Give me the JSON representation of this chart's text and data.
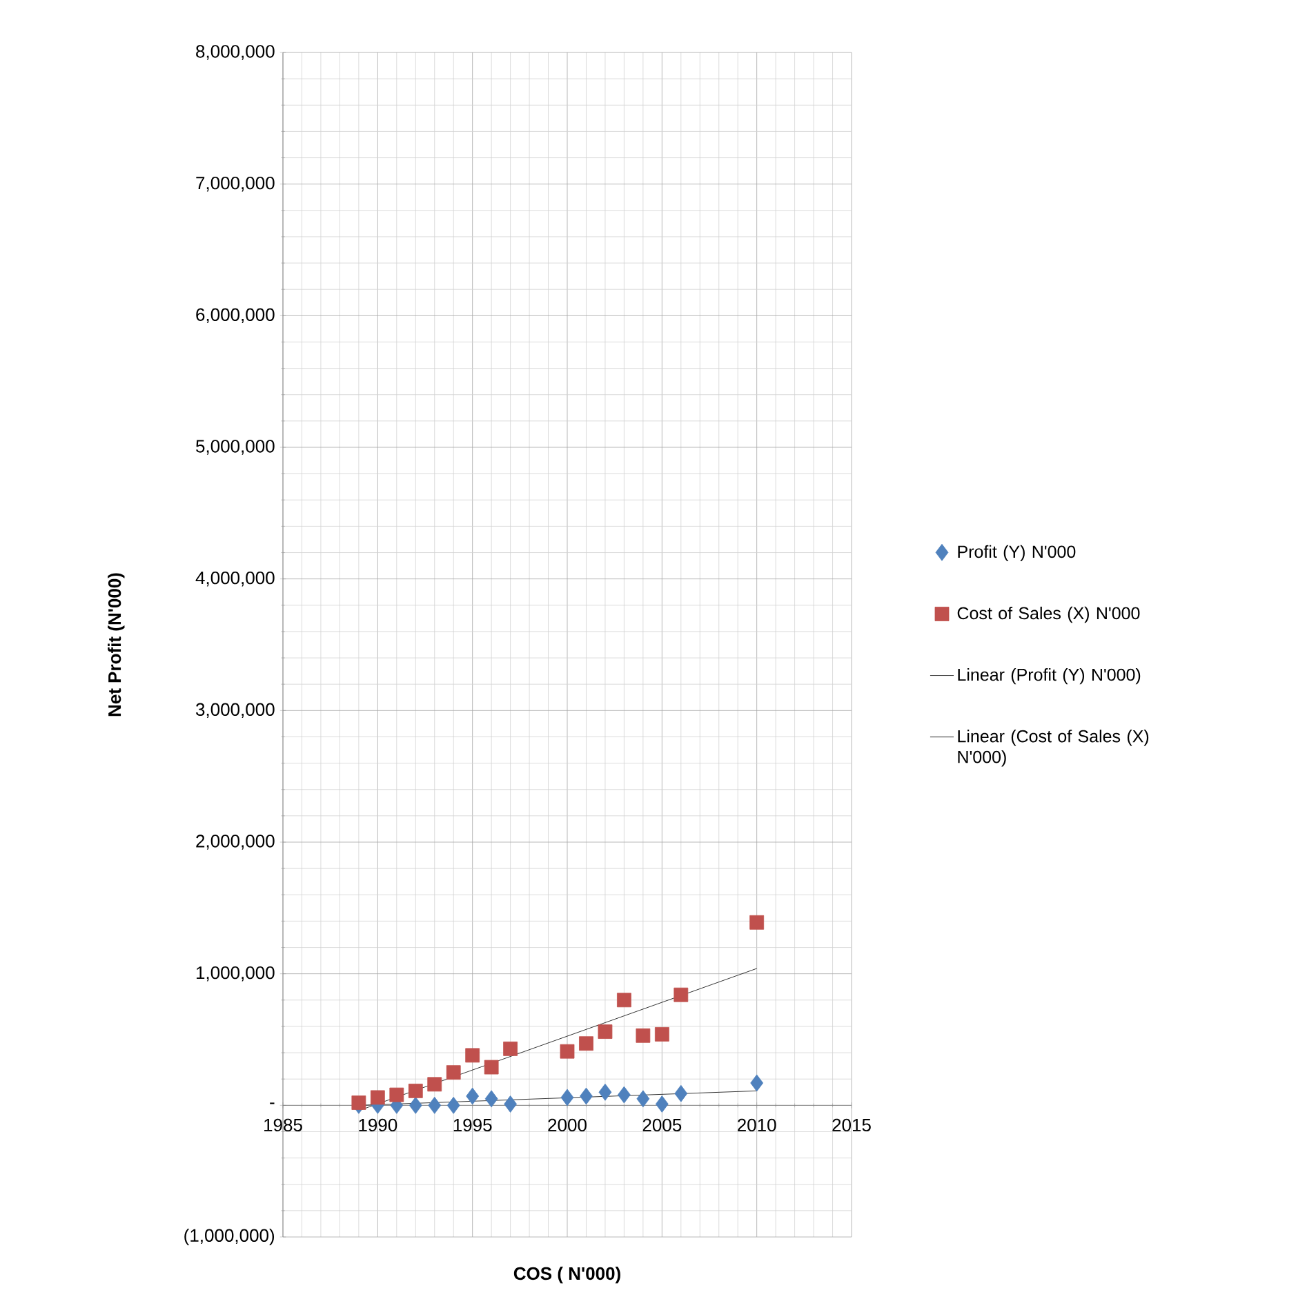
{
  "chart_data": {
    "type": "scatter",
    "xlabel": "COS ( N'000)",
    "ylabel": "Net Profit (N'000)",
    "xlim": [
      1985,
      2015
    ],
    "xticks": [
      1985,
      1990,
      1995,
      2000,
      2005,
      2010,
      2015
    ],
    "ylim": [
      -1000000,
      8000000
    ],
    "yticks": [
      {
        "value": -1000000,
        "label": "(1,000,000)"
      },
      {
        "value": 0,
        "label": "-"
      },
      {
        "value": 1000000,
        "label": "1,000,000"
      },
      {
        "value": 2000000,
        "label": "2,000,000"
      },
      {
        "value": 3000000,
        "label": "3,000,000"
      },
      {
        "value": 4000000,
        "label": "4,000,000"
      },
      {
        "value": 5000000,
        "label": "5,000,000"
      },
      {
        "value": 6000000,
        "label": "6,000,000"
      },
      {
        "value": 7000000,
        "label": "7,000,000"
      },
      {
        "value": 8000000,
        "label": "8,000,000"
      }
    ],
    "grid": true,
    "legend": "right",
    "series": [
      {
        "name": "Profit  (Y) N'000",
        "type": "scatter",
        "marker": "diamond",
        "color": "#4f81bd",
        "x": [
          1989,
          1990,
          1991,
          1992,
          1993,
          1994,
          1995,
          1996,
          1997,
          2000,
          2001,
          2002,
          2003,
          2004,
          2005,
          2006,
          2010
        ],
        "values": [
          0,
          0,
          0,
          0,
          0,
          0,
          70000,
          50000,
          10000,
          60000,
          70000,
          100000,
          80000,
          50000,
          10000,
          90000,
          170000
        ]
      },
      {
        "name": "Cost of Sales  (X) N'000",
        "type": "scatter",
        "marker": "square",
        "color": "#c0504d",
        "x": [
          1989,
          1990,
          1991,
          1992,
          1993,
          1994,
          1995,
          1996,
          1997,
          2000,
          2001,
          2002,
          2003,
          2004,
          2005,
          2006,
          2010
        ],
        "values": [
          20000,
          60000,
          80000,
          110000,
          160000,
          250000,
          380000,
          290000,
          430000,
          410000,
          470000,
          560000,
          800000,
          530000,
          540000,
          840000,
          1390000
        ]
      },
      {
        "name": "Linear (Profit  (Y) N'000)",
        "type": "line",
        "marker": "none",
        "line_style": "solid",
        "color": "#000000",
        "x": [
          1989,
          2010
        ],
        "values": [
          0,
          110000
        ]
      },
      {
        "name": "Linear (Cost of Sales  (X) N'000)",
        "type": "line",
        "marker": "none",
        "line_style": "solid",
        "color": "#000000",
        "x": [
          1989,
          2010
        ],
        "values": [
          -40000,
          1040000
        ]
      }
    ]
  }
}
